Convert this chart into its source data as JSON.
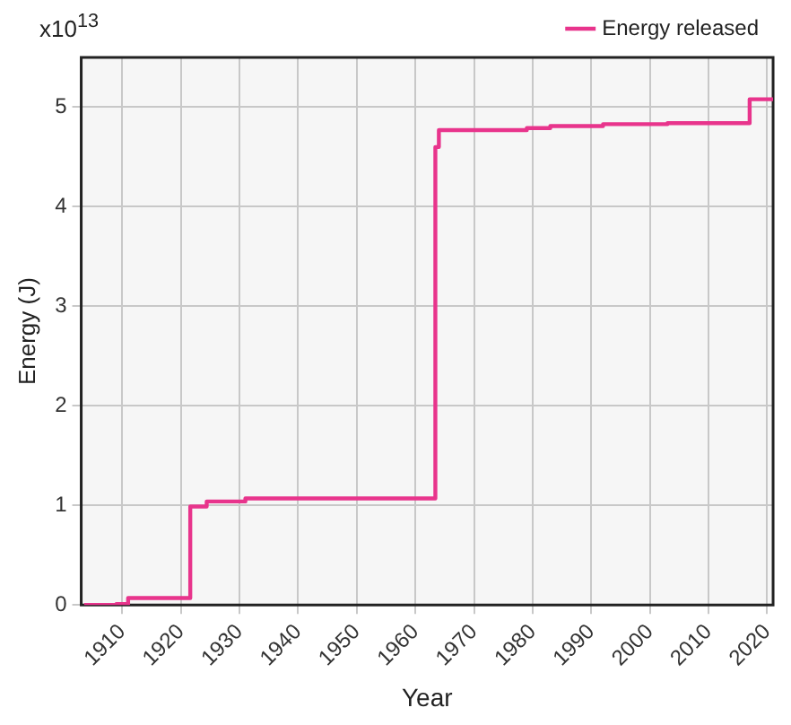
{
  "chart_data": {
    "type": "step",
    "xlabel": "Year",
    "ylabel": "Energy (J)",
    "annotations": [
      "x10$^{13}$"
    ],
    "x": [
      1903.5,
      1909,
      1911,
      1921.6,
      1924.4,
      1931,
      1963.4,
      1964,
      1979,
      1983,
      1992,
      2003,
      2017,
      2021
    ],
    "series": [
      {
        "name": "Energy released",
        "color": "#e8348c",
        "values": [
          0,
          0.01,
          0.07,
          0.99,
          1.04,
          1.07,
          4.6,
          4.77,
          4.79,
          4.81,
          4.83,
          4.84,
          5.08,
          5.08
        ]
      }
    ],
    "xlim": [
      1903,
      2021
    ],
    "xticks": [
      1910,
      1920,
      1930,
      1940,
      1950,
      1960,
      1970,
      1980,
      1990,
      2000,
      2010,
      2020
    ],
    "ylim": [
      0,
      5.5
    ],
    "yticks": [
      0,
      1,
      2,
      3,
      4,
      5
    ],
    "grid": true,
    "legend": "top right",
    "marker": "none",
    "line_style": "solid"
  }
}
